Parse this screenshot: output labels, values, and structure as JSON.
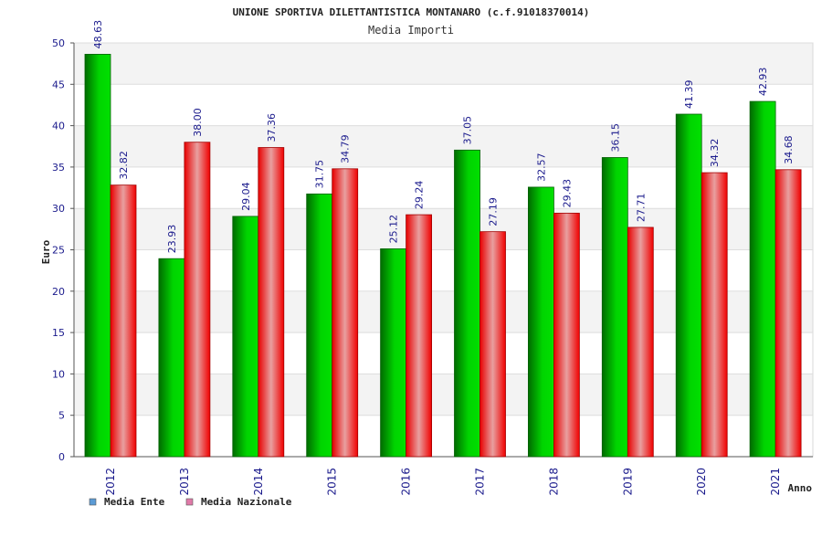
{
  "chart_data": {
    "type": "bar",
    "title": "UNIONE SPORTIVA DILETTANTISTICA MONTANARO (c.f.91018370014)",
    "subtitle": "Media Importi",
    "xlabel": "Anno",
    "ylabel": "Euro",
    "ylim": [
      0,
      50
    ],
    "yticks": [
      0,
      5,
      10,
      15,
      20,
      25,
      30,
      35,
      40,
      45,
      50
    ],
    "categories": [
      "2012",
      "2013",
      "2014",
      "2015",
      "2016",
      "2017",
      "2018",
      "2019",
      "2020",
      "2021"
    ],
    "series": [
      {
        "name": "Media Ente",
        "values": [
          48.63,
          23.93,
          29.04,
          31.75,
          25.12,
          37.05,
          32.57,
          36.15,
          41.39,
          42.93
        ],
        "labels": [
          "48.63",
          "23.93",
          "29.04",
          "31.75",
          "25.12",
          "37.05",
          "32.57",
          "36.15",
          "41.39",
          "42.93"
        ],
        "color": "#00b400",
        "legend_color": "#5b9bd5"
      },
      {
        "name": "Media Nazionale",
        "values": [
          32.82,
          38.0,
          37.36,
          34.79,
          29.24,
          27.19,
          29.43,
          27.71,
          34.32,
          34.68
        ],
        "labels": [
          "32.82",
          "38.00",
          "37.36",
          "34.79",
          "29.24",
          "27.19",
          "29.43",
          "27.71",
          "34.32",
          "34.68"
        ],
        "color": "#f00000",
        "legend_color": "#e07aa8"
      }
    ],
    "grid": true,
    "legend_position": "bottom-left"
  }
}
